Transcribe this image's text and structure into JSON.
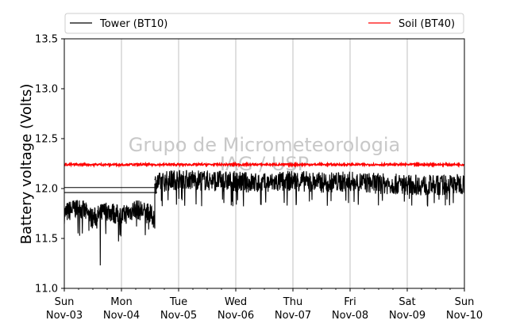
{
  "chart_data": {
    "type": "line",
    "title": "",
    "xlabel": "",
    "ylabel": "Battery voltage (Volts)",
    "ylim": [
      11.0,
      13.5
    ],
    "yticks": [
      "11.0",
      "11.5",
      "12.0",
      "12.5",
      "13.0",
      "13.5"
    ],
    "xlim": [
      "2019-11-03",
      "2019-11-10"
    ],
    "xtick_labels": [
      {
        "day": "Sun",
        "date": "Nov-03"
      },
      {
        "day": "Mon",
        "date": "Nov-04"
      },
      {
        "day": "Tue",
        "date": "Nov-05"
      },
      {
        "day": "Wed",
        "date": "Nov-06"
      },
      {
        "day": "Thu",
        "date": "Nov-07"
      },
      {
        "day": "Fri",
        "date": "Nov-08"
      },
      {
        "day": "Sat",
        "date": "Nov-09"
      },
      {
        "day": "Sun",
        "date": "Nov-10"
      }
    ],
    "grid": "vertical",
    "legend_placement": "top",
    "watermark": [
      "Grupo de Micrometeorologia",
      "IAG / USP"
    ],
    "series": [
      {
        "name": "Tower (BT10)",
        "color": "#000000",
        "segments": [
          {
            "x": [
              "2019-11-03 00:00",
              "2019-11-03 06:00",
              "2019-11-03 12:00",
              "2019-11-03 18:00",
              "2019-11-04 00:00",
              "2019-11-04 06:00",
              "2019-11-04 12:00",
              "2019-11-04 14:00"
            ],
            "y": [
              11.75,
              11.82,
              11.7,
              11.78,
              11.72,
              11.8,
              11.74,
              11.7
            ],
            "min": [
              11.55,
              11.23,
              11.47,
              11.62
            ],
            "band": [
              11.6,
              11.88
            ]
          },
          {
            "x": [
              "2019-11-04 14:00",
              "2019-11-05 00:00",
              "2019-11-05 12:00",
              "2019-11-06 00:00",
              "2019-11-06 12:00",
              "2019-11-07 00:00",
              "2019-11-07 12:00",
              "2019-11-08 00:00",
              "2019-11-08 12:00",
              "2019-11-09 00:00",
              "2019-11-09 12:00",
              "2019-11-10 00:00"
            ],
            "y": [
              12.05,
              12.1,
              12.08,
              12.07,
              12.05,
              12.08,
              12.06,
              12.07,
              12.05,
              12.04,
              12.03,
              12.05
            ],
            "band": [
              11.9,
              12.18
            ]
          }
        ],
        "gap_lines": [
          {
            "x": [
              "2019-11-03 00:00",
              "2019-11-04 15:00"
            ],
            "y": 12.01
          },
          {
            "x": [
              "2019-11-03 00:00",
              "2019-11-04 15:00"
            ],
            "y": 11.96
          }
        ]
      },
      {
        "name": "Soil (BT40)",
        "color": "#ff0000",
        "x": [
          "2019-11-03 00:00",
          "2019-11-10 00:00"
        ],
        "y": [
          12.24,
          12.24
        ],
        "band": [
          12.23,
          12.25
        ]
      }
    ]
  }
}
